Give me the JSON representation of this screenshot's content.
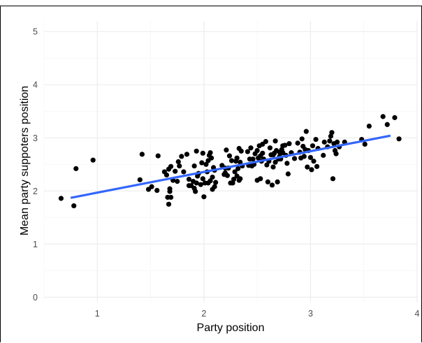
{
  "chart_data": {
    "type": "scatter",
    "title": "",
    "xlabel": "Party position",
    "ylabel": "Mean party suppoters position",
    "xlim": [
      0.5,
      4.0
    ],
    "ylim": [
      -0.1,
      5.2
    ],
    "x_ticks": [
      1,
      2,
      3,
      4
    ],
    "y_ticks": [
      0,
      1,
      2,
      3,
      4,
      5
    ],
    "grid": true,
    "legend": "none",
    "colors": {
      "points": "#000000",
      "trend": "#3366ff"
    },
    "trend_line": {
      "x": [
        0.75,
        3.75
      ],
      "y": [
        1.87,
        3.04
      ]
    },
    "points": [
      [
        0.66,
        1.86
      ],
      [
        0.78,
        1.72
      ],
      [
        0.8,
        2.42
      ],
      [
        0.96,
        2.58
      ],
      [
        1.4,
        2.21
      ],
      [
        1.42,
        2.69
      ],
      [
        1.48,
        2.03
      ],
      [
        1.51,
        2.08
      ],
      [
        1.56,
        2.01
      ],
      [
        1.57,
        2.66
      ],
      [
        1.63,
        2.36
      ],
      [
        1.65,
        2.3
      ],
      [
        1.66,
        1.88
      ],
      [
        1.67,
        2.41
      ],
      [
        1.67,
        1.75
      ],
      [
        1.68,
        1.99
      ],
      [
        1.68,
        2.04
      ],
      [
        1.69,
        1.88
      ],
      [
        1.69,
        2.46
      ],
      [
        1.71,
        2.2
      ],
      [
        1.73,
        2.37
      ],
      [
        1.75,
        2.18
      ],
      [
        1.76,
        2.55
      ],
      [
        1.77,
        2.47
      ],
      [
        1.79,
        2.65
      ],
      [
        1.81,
        2.36
      ],
      [
        1.84,
        2.69
      ],
      [
        1.86,
        2.22
      ],
      [
        1.86,
        2.1
      ],
      [
        1.88,
        2.1
      ],
      [
        1.9,
        2.18
      ],
      [
        1.91,
        2.47
      ],
      [
        1.91,
        2.05
      ],
      [
        1.92,
        1.99
      ],
      [
        1.93,
        2.75
      ],
      [
        1.93,
        2.15
      ],
      [
        1.94,
        2.28
      ],
      [
        1.95,
        2.33
      ],
      [
        1.97,
        2.12
      ],
      [
        1.98,
        2.53
      ],
      [
        1.99,
        2.23
      ],
      [
        1.99,
        2.71
      ],
      [
        2.0,
        1.89
      ],
      [
        2.01,
        2.15
      ],
      [
        2.02,
        2.5
      ],
      [
        2.03,
        2.36
      ],
      [
        2.04,
        2.15
      ],
      [
        2.04,
        2.57
      ],
      [
        2.05,
        2.67
      ],
      [
        2.06,
        2.19
      ],
      [
        2.06,
        2.72
      ],
      [
        2.07,
        2.62
      ],
      [
        2.08,
        2.26
      ],
      [
        2.08,
        2.03
      ],
      [
        2.09,
        2.44
      ],
      [
        2.1,
        2.39
      ],
      [
        2.1,
        2.08
      ],
      [
        2.11,
        2.16
      ],
      [
        2.17,
        2.48
      ],
      [
        2.19,
        2.31
      ],
      [
        2.2,
        2.43
      ],
      [
        2.2,
        2.34
      ],
      [
        2.21,
        2.77
      ],
      [
        2.22,
        2.29
      ],
      [
        2.23,
        2.43
      ],
      [
        2.24,
        2.66
      ],
      [
        2.25,
        2.15
      ],
      [
        2.26,
        2.57
      ],
      [
        2.27,
        2.15
      ],
      [
        2.28,
        2.22
      ],
      [
        2.29,
        2.36
      ],
      [
        2.3,
        2.56
      ],
      [
        2.31,
        2.28
      ],
      [
        2.31,
        2.62
      ],
      [
        2.32,
        2.42
      ],
      [
        2.33,
        2.8
      ],
      [
        2.33,
        2.2
      ],
      [
        2.34,
        2.54
      ],
      [
        2.34,
        2.23
      ],
      [
        2.35,
        2.75
      ],
      [
        2.36,
        2.47
      ],
      [
        2.41,
        2.74
      ],
      [
        2.42,
        2.48
      ],
      [
        2.43,
        2.6
      ],
      [
        2.44,
        2.81
      ],
      [
        2.45,
        2.47
      ],
      [
        2.46,
        2.6
      ],
      [
        2.47,
        2.5
      ],
      [
        2.48,
        2.7
      ],
      [
        2.5,
        2.2
      ],
      [
        2.5,
        2.76
      ],
      [
        2.51,
        2.62
      ],
      [
        2.52,
        2.85
      ],
      [
        2.53,
        2.66
      ],
      [
        2.53,
        2.23
      ],
      [
        2.54,
        2.56
      ],
      [
        2.55,
        2.88
      ],
      [
        2.55,
        2.71
      ],
      [
        2.56,
        2.6
      ],
      [
        2.58,
        2.93
      ],
      [
        2.59,
        2.49
      ],
      [
        2.6,
        2.17
      ],
      [
        2.61,
        2.56
      ],
      [
        2.62,
        2.81
      ],
      [
        2.63,
        2.68
      ],
      [
        2.64,
        2.11
      ],
      [
        2.65,
        2.45
      ],
      [
        2.65,
        2.68
      ],
      [
        2.66,
        2.71
      ],
      [
        2.67,
        2.54
      ],
      [
        2.67,
        2.94
      ],
      [
        2.68,
        2.76
      ],
      [
        2.69,
        2.17
      ],
      [
        2.7,
        2.6
      ],
      [
        2.71,
        2.65
      ],
      [
        2.71,
        2.73
      ],
      [
        2.72,
        2.6
      ],
      [
        2.73,
        2.78
      ],
      [
        2.74,
        2.72
      ],
      [
        2.74,
        2.85
      ],
      [
        2.76,
        2.86
      ],
      [
        2.77,
        2.67
      ],
      [
        2.78,
        2.52
      ],
      [
        2.79,
        2.32
      ],
      [
        2.8,
        2.89
      ],
      [
        2.82,
        2.72
      ],
      [
        2.85,
        2.61
      ],
      [
        2.88,
        2.9
      ],
      [
        2.9,
        2.73
      ],
      [
        2.91,
        2.62
      ],
      [
        2.92,
        2.98
      ],
      [
        2.93,
        2.84
      ],
      [
        2.94,
        2.65
      ],
      [
        2.95,
        2.78
      ],
      [
        2.96,
        3.12
      ],
      [
        2.97,
        2.45
      ],
      [
        2.98,
        2.76
      ],
      [
        3.0,
        2.63
      ],
      [
        3.01,
        2.4
      ],
      [
        3.02,
        2.85
      ],
      [
        3.03,
        2.56
      ],
      [
        3.05,
        2.97
      ],
      [
        3.06,
        2.46
      ],
      [
        3.07,
        2.8
      ],
      [
        3.12,
        2.67
      ],
      [
        3.13,
        2.92
      ],
      [
        3.16,
        2.83
      ],
      [
        3.18,
        2.94
      ],
      [
        3.19,
        3.03
      ],
      [
        3.2,
        3.1
      ],
      [
        3.21,
        2.23
      ],
      [
        3.22,
        2.89
      ],
      [
        3.23,
        2.76
      ],
      [
        3.24,
        2.7
      ],
      [
        3.25,
        2.92
      ],
      [
        3.27,
        2.83
      ],
      [
        3.32,
        2.92
      ],
      [
        3.48,
        2.97
      ],
      [
        3.51,
        2.88
      ],
      [
        3.55,
        3.22
      ],
      [
        3.68,
        3.4
      ],
      [
        3.72,
        3.25
      ],
      [
        3.79,
        3.38
      ],
      [
        3.83,
        2.98
      ]
    ]
  }
}
